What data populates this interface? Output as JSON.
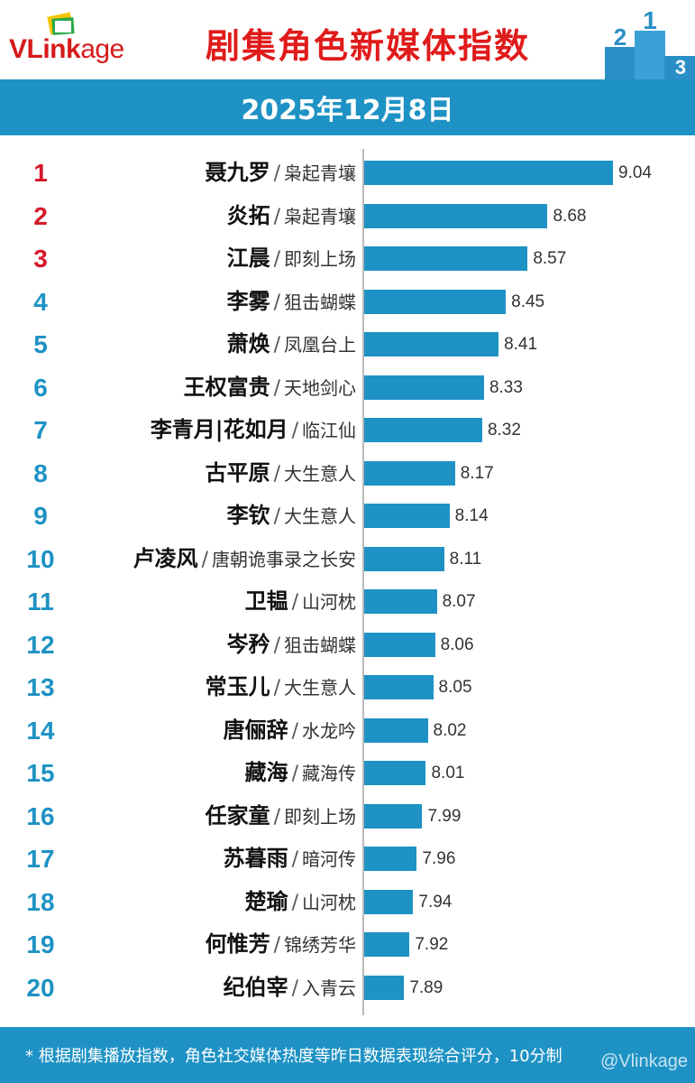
{
  "header": {
    "logo_text_v": "VLink",
    "logo_text_rest": "age",
    "title": "剧集角色新媒体指数",
    "podium_labels": [
      "2",
      "1",
      "3"
    ]
  },
  "date": "2025年12月8日",
  "colors": {
    "bar": "#1e92c4",
    "rank_top": "#d6182a",
    "rank_other": "#1e92c4",
    "title": "#e01b1b"
  },
  "chart_data": {
    "type": "bar",
    "orientation": "horizontal",
    "title": "剧集角色新媒体指数",
    "ranks": [
      "1",
      "2",
      "3",
      "4",
      "5",
      "6",
      "7",
      "8",
      "9",
      "10",
      "11",
      "12",
      "13",
      "14",
      "15",
      "16",
      "17",
      "18",
      "19",
      "20"
    ],
    "names": [
      "聂九罗",
      "炎拓",
      "江晨",
      "李雾",
      "萧焕",
      "王权富贵",
      "李青月|花如月",
      "古平原",
      "李钦",
      "卢凌风",
      "卫韫",
      "岑矜",
      "常玉儿",
      "唐俪辞",
      "藏海",
      "任家童",
      "苏暮雨",
      "楚瑜",
      "何惟芳",
      "纪伯宰"
    ],
    "shows": [
      "枭起青壤",
      "枭起青壤",
      "即刻上场",
      "狙击蝴蝶",
      "凤凰台上",
      "天地剑心",
      "临江仙",
      "大生意人",
      "大生意人",
      "唐朝诡事录之长安",
      "山河枕",
      "狙击蝴蝶",
      "大生意人",
      "水龙吟",
      "藏海传",
      "即刻上场",
      "暗河传",
      "山河枕",
      "锦绣芳华",
      "入青云"
    ],
    "separator": "/",
    "values": [
      9.04,
      8.68,
      8.57,
      8.45,
      8.41,
      8.33,
      8.32,
      8.17,
      8.14,
      8.11,
      8.07,
      8.06,
      8.05,
      8.02,
      8.01,
      7.99,
      7.96,
      7.94,
      7.92,
      7.89
    ],
    "value_labels": [
      "9.04",
      "8.68",
      "8.57",
      "8.45",
      "8.41",
      "8.33",
      "8.32",
      "8.17",
      "8.14",
      "8.11",
      "8.07",
      "8.06",
      "8.05",
      "8.02",
      "8.01",
      "7.99",
      "7.96",
      "7.94",
      "7.92",
      "7.89"
    ],
    "xlim": [
      7.67,
      9.04
    ]
  },
  "footer": {
    "note": "* 根据剧集播放指数，角色社交媒体热度等昨日数据表现综合评分，10分制",
    "watermark": "@Vlinkage"
  }
}
